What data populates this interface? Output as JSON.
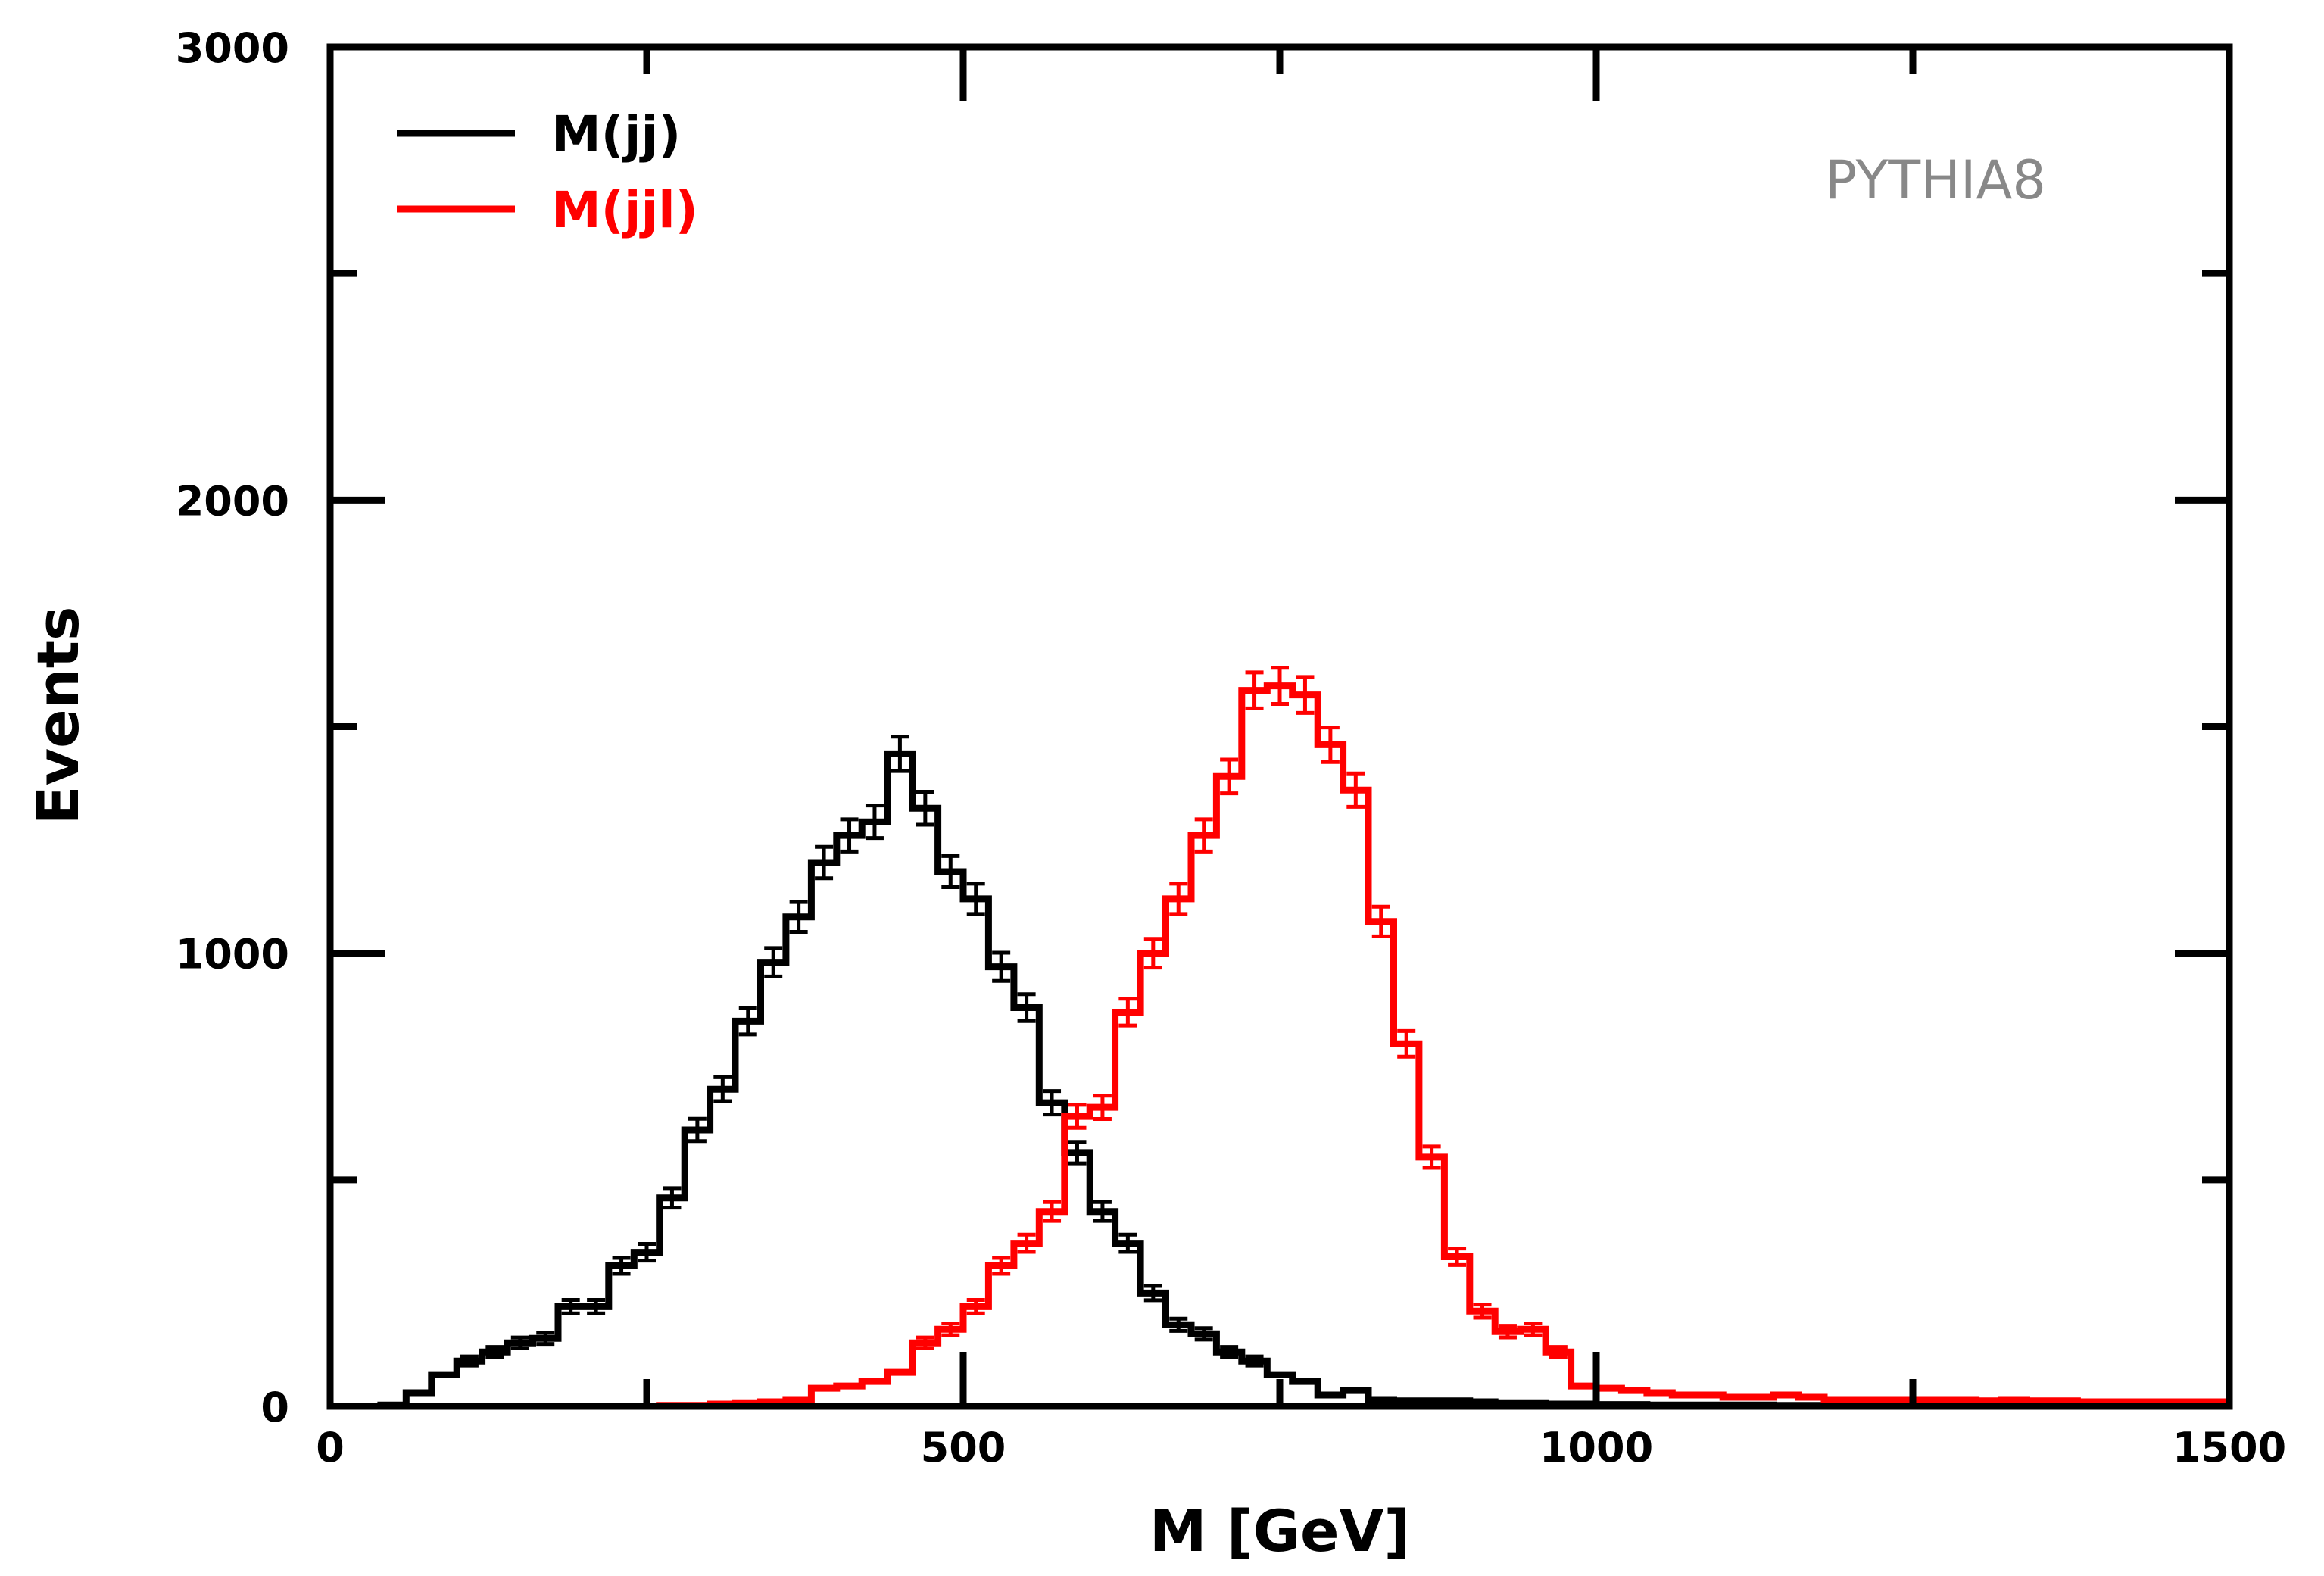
{
  "chart_data": {
    "type": "histogram",
    "xlabel": "M [GeV]",
    "ylabel": "Events",
    "xlim": [
      0,
      1500
    ],
    "ylim": [
      0,
      3000
    ],
    "xticks": [
      0,
      500,
      1000,
      1500
    ],
    "yticks": [
      0,
      1000,
      2000,
      3000
    ],
    "annotation": "PYTHIA8",
    "bin_width": 20,
    "series": [
      {
        "name": "M(jj)",
        "color": "#000000",
        "bin_start": 0,
        "values": [
          0,
          0,
          3,
          30,
          70,
          100,
          120,
          140,
          150,
          220,
          220,
          310,
          340,
          460,
          610,
          700,
          850,
          980,
          1080,
          1200,
          1260,
          1290,
          1440,
          1320,
          1180,
          1120,
          970,
          880,
          670,
          560,
          430,
          360,
          250,
          180,
          160,
          120,
          100,
          70,
          55,
          25,
          35,
          15,
          12,
          12,
          12,
          10,
          8,
          8,
          5,
          5,
          4,
          4,
          3,
          3,
          3,
          3,
          3,
          2,
          2,
          2,
          2,
          2,
          2,
          2,
          2,
          2,
          2,
          2,
          2,
          2,
          2,
          2,
          2,
          2,
          2
        ]
      },
      {
        "name": "M(jjl)",
        "color": "#ff0000",
        "bin_start": 260,
        "values": [
          2,
          2,
          5,
          8,
          10,
          15,
          40,
          45,
          55,
          75,
          140,
          170,
          220,
          310,
          360,
          430,
          640,
          660,
          870,
          1000,
          1120,
          1260,
          1390,
          1580,
          1590,
          1570,
          1460,
          1360,
          1070,
          800,
          550,
          330,
          210,
          165,
          170,
          120,
          45,
          40,
          35,
          30,
          25,
          25,
          20,
          20,
          25,
          20,
          15,
          15,
          15,
          15,
          15,
          15,
          12,
          15,
          12,
          12,
          10,
          10,
          10,
          10,
          10,
          10
        ]
      }
    ]
  }
}
